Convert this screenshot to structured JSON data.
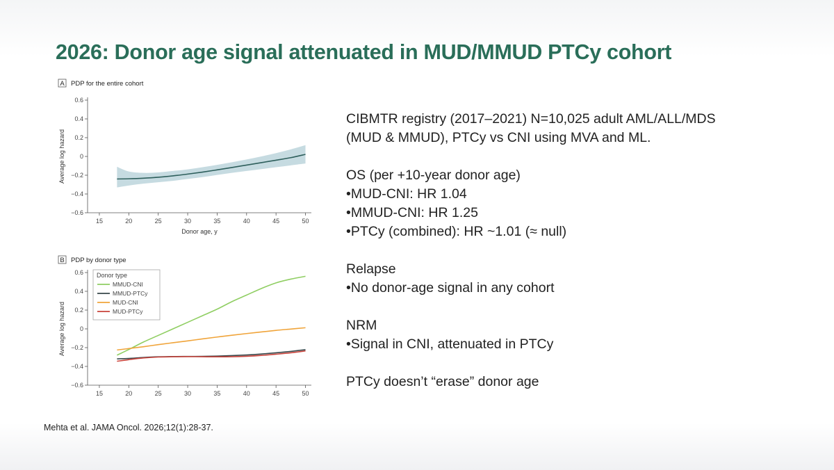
{
  "slide": {
    "title": "2026: Donor age signal attenuated in MUD/MMUD PTCy cohort",
    "citation": "Mehta et al. JAMA Oncol. 2026;12(1):28-37.",
    "title_color": "#2a6e59"
  },
  "text_block": {
    "lines": [
      "CIBMTR registry (2017–2021) N=10,025 adult AML/ALL/MDS",
      "(MUD & MMUD), PTCy vs CNI using MVA and ML.",
      "",
      "OS (per +10-year donor age)",
      "•MUD-CNI: HR 1.04",
      "•MMUD-CNI: HR 1.25",
      "•PTCy (combined): HR ~1.01 (≈ null)",
      "",
      "Relapse",
      "•No donor-age signal in any cohort",
      "",
      "NRM",
      "•Signal in CNI, attenuated in PTCy",
      "",
      "PTCy doesn’t “erase” donor age"
    ]
  },
  "chart_data": [
    {
      "type": "line",
      "panel_letter": "A",
      "title": "PDP for the entire cohort",
      "xlabel": "Donor age, y",
      "ylabel": "Average log hazard",
      "xlim": [
        13,
        51
      ],
      "ylim": [
        -0.6,
        0.6
      ],
      "x_ticks": [
        15,
        20,
        25,
        30,
        35,
        40,
        45,
        50
      ],
      "y_ticks": [
        -0.6,
        -0.4,
        -0.2,
        0,
        0.2,
        0.4,
        0.6
      ],
      "y_tick_labels": [
        "−0.6",
        "−0.4",
        "−0.2",
        "0",
        "0.2",
        "0.4",
        "0.6"
      ],
      "series": [
        {
          "name": "Entire cohort",
          "color": "#2e5f5c",
          "band_color": "#c6dbe1",
          "x": [
            18,
            20,
            22.5,
            25,
            27.5,
            30,
            32.5,
            35,
            37.5,
            40,
            42.5,
            45,
            47.5,
            50
          ],
          "values": [
            -0.24,
            -0.238,
            -0.232,
            -0.222,
            -0.207,
            -0.188,
            -0.167,
            -0.143,
            -0.118,
            -0.092,
            -0.066,
            -0.04,
            -0.013,
            0.022
          ],
          "lower": [
            -0.33,
            -0.31,
            -0.29,
            -0.275,
            -0.26,
            -0.24,
            -0.22,
            -0.197,
            -0.175,
            -0.155,
            -0.135,
            -0.115,
            -0.095,
            -0.075
          ],
          "upper": [
            -0.11,
            -0.16,
            -0.175,
            -0.17,
            -0.155,
            -0.138,
            -0.115,
            -0.09,
            -0.062,
            -0.032,
            0.0,
            0.035,
            0.075,
            0.12
          ]
        }
      ]
    },
    {
      "type": "line",
      "panel_letter": "B",
      "title": "PDP by donor type",
      "xlabel": "",
      "ylabel": "Average log hazard",
      "xlim": [
        13,
        51
      ],
      "ylim": [
        -0.6,
        0.6
      ],
      "x_ticks": [
        15,
        20,
        25,
        30,
        35,
        40,
        45,
        50
      ],
      "y_ticks": [
        -0.6,
        -0.4,
        -0.2,
        0,
        0.2,
        0.4,
        0.6
      ],
      "y_tick_labels": [
        "−0.6",
        "−0.4",
        "−0.2",
        "0",
        "0.2",
        "0.4",
        "0.6"
      ],
      "legend_title": "Donor type",
      "legend_position": "top-left",
      "series": [
        {
          "name": "MMUD-CNI",
          "color": "#8fce62",
          "x": [
            18,
            20,
            22.5,
            25,
            27.5,
            30,
            32.5,
            35,
            37.5,
            40,
            42.5,
            45,
            47.5,
            50
          ],
          "values": [
            -0.28,
            -0.22,
            -0.14,
            -0.07,
            0.0,
            0.07,
            0.14,
            0.21,
            0.29,
            0.36,
            0.43,
            0.49,
            0.53,
            0.56
          ]
        },
        {
          "name": "MMUD-PTCy",
          "color": "#37474a",
          "x": [
            18,
            20,
            22.5,
            25,
            27.5,
            30,
            32.5,
            35,
            37.5,
            40,
            42.5,
            45,
            47.5,
            50
          ],
          "values": [
            -0.32,
            -0.315,
            -0.305,
            -0.298,
            -0.295,
            -0.294,
            -0.293,
            -0.29,
            -0.285,
            -0.278,
            -0.268,
            -0.255,
            -0.24,
            -0.222
          ]
        },
        {
          "name": "MUD-CNI",
          "color": "#f0a43a",
          "x": [
            18,
            20,
            22.5,
            25,
            27.5,
            30,
            32.5,
            35,
            37.5,
            40,
            42.5,
            45,
            47.5,
            50
          ],
          "values": [
            -0.225,
            -0.21,
            -0.19,
            -0.168,
            -0.148,
            -0.128,
            -0.107,
            -0.087,
            -0.068,
            -0.05,
            -0.033,
            -0.016,
            -0.002,
            0.012
          ]
        },
        {
          "name": "MUD-PTCy",
          "color": "#c8423a",
          "x": [
            18,
            20,
            22.5,
            25,
            27.5,
            30,
            32.5,
            35,
            37.5,
            40,
            42.5,
            45,
            47.5,
            50
          ],
          "values": [
            -0.345,
            -0.328,
            -0.31,
            -0.3,
            -0.297,
            -0.296,
            -0.297,
            -0.298,
            -0.297,
            -0.292,
            -0.283,
            -0.27,
            -0.255,
            -0.235
          ]
        }
      ]
    }
  ]
}
